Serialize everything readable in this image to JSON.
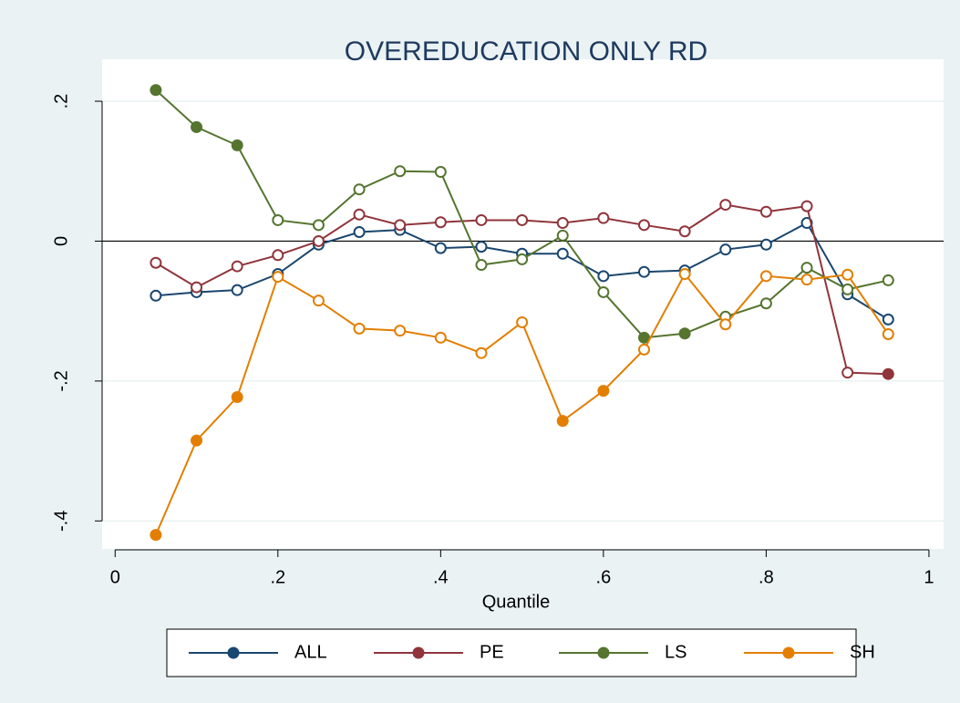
{
  "chart_data": {
    "type": "line",
    "title": "OVEREDUCATION ONLY RD",
    "xlabel": "Quantile",
    "x": [
      0.05,
      0.1,
      0.15,
      0.2,
      0.25,
      0.3,
      0.35,
      0.4,
      0.45,
      0.5,
      0.55,
      0.6,
      0.65,
      0.7,
      0.75,
      0.8,
      0.85,
      0.9,
      0.95
    ],
    "series": [
      {
        "name": "ALL",
        "color": "#1a476f",
        "values": [
          -0.078,
          -0.073,
          -0.07,
          -0.047,
          -0.005,
          0.013,
          0.016,
          -0.01,
          -0.008,
          -0.018,
          -0.018,
          -0.05,
          -0.044,
          -0.042,
          -0.012,
          -0.005,
          0.026,
          -0.076,
          -0.112
        ],
        "filled": [
          false,
          false,
          false,
          false,
          false,
          false,
          false,
          false,
          false,
          false,
          false,
          false,
          false,
          false,
          false,
          false,
          false,
          false,
          false
        ]
      },
      {
        "name": "PE",
        "color": "#90353b",
        "values": [
          -0.031,
          -0.066,
          -0.036,
          -0.02,
          0,
          0.038,
          0.023,
          0.027,
          0.03,
          0.03,
          0.026,
          0.033,
          0.023,
          0.014,
          0.052,
          0.042,
          0.05,
          -0.188,
          -0.19
        ],
        "filled": [
          false,
          false,
          false,
          false,
          false,
          false,
          false,
          false,
          false,
          false,
          false,
          false,
          false,
          false,
          false,
          false,
          false,
          false,
          true
        ]
      },
      {
        "name": "LS",
        "color": "#55752f",
        "values": [
          0.216,
          0.163,
          0.137,
          0.03,
          0.023,
          0.074,
          0.1,
          0.099,
          -0.034,
          -0.026,
          0.008,
          -0.073,
          -0.138,
          -0.132,
          -0.108,
          -0.089,
          -0.038,
          -0.069,
          -0.056
        ],
        "filled": [
          true,
          true,
          true,
          false,
          false,
          false,
          false,
          false,
          false,
          false,
          false,
          false,
          true,
          true,
          false,
          false,
          false,
          false,
          false
        ]
      },
      {
        "name": "SH",
        "color": "#e37e00",
        "values": [
          -0.42,
          -0.285,
          -0.223,
          -0.051,
          -0.085,
          -0.125,
          -0.128,
          -0.138,
          -0.16,
          -0.116,
          -0.257,
          -0.214,
          -0.155,
          -0.047,
          -0.119,
          -0.05,
          -0.055,
          -0.048,
          -0.133
        ],
        "filled": [
          true,
          true,
          true,
          false,
          false,
          false,
          false,
          false,
          false,
          false,
          true,
          true,
          false,
          false,
          false,
          false,
          false,
          false,
          false
        ]
      }
    ],
    "xlim": [
      -0.016,
      1.018
    ],
    "ylim": [
      -0.44,
      0.26
    ],
    "xticks": [
      0,
      {
        "value": 0.2,
        "label": ".2"
      },
      {
        "value": 0.4,
        "label": ".4"
      },
      {
        "value": 0.6,
        "label": ".6"
      },
      {
        "value": 0.8,
        "label": ".8"
      },
      1
    ],
    "yticks": [
      {
        "value": -0.4,
        "label": "-.4"
      },
      {
        "value": -0.2,
        "label": "-.2"
      },
      0,
      {
        "value": 0.2,
        "label": ".2"
      }
    ],
    "yline": 0,
    "grid": true,
    "legend": "bottom"
  }
}
